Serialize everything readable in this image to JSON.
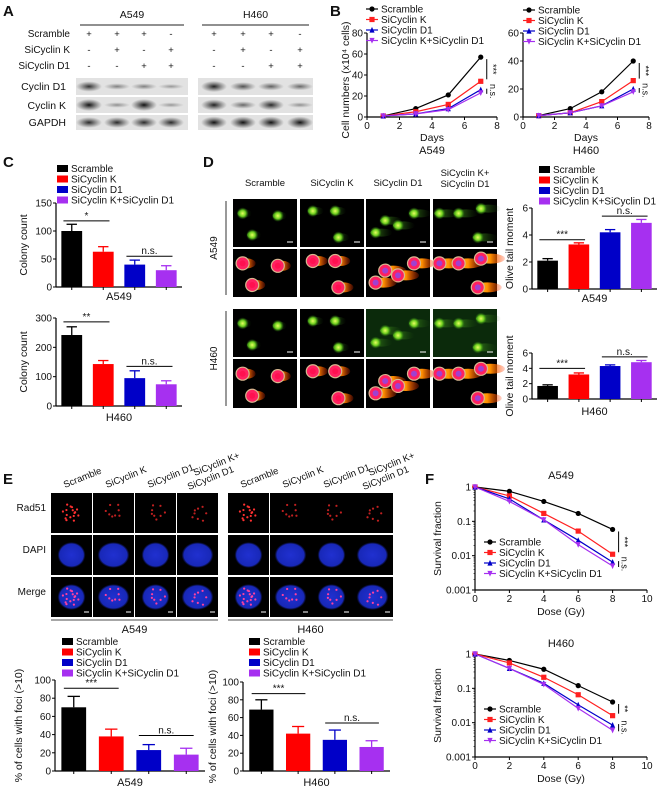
{
  "panel_letters": [
    "A",
    "B",
    "C",
    "D",
    "E",
    "F"
  ],
  "colors": {
    "scramble": "#000000",
    "sicyclin_k": "#ff0000",
    "sicyclin_d1": "#0000c8",
    "combo": "#a630f0"
  },
  "blot": {
    "groups": [
      "A549",
      "H460"
    ],
    "conditions": [
      {
        "label": "Scramble",
        "a549": [
          "+",
          "+",
          "+",
          "-"
        ],
        "h460": [
          "+",
          "+",
          "+",
          "-"
        ]
      },
      {
        "label": "SiCyclin K",
        "a549": [
          "-",
          "+",
          "-",
          "+"
        ],
        "h460": [
          "-",
          "+",
          "-",
          "+"
        ]
      },
      {
        "label": "SiCyclin D1",
        "a549": [
          "-",
          "-",
          "+",
          "+"
        ],
        "h460": [
          "-",
          "-",
          "+",
          "+"
        ]
      }
    ],
    "bands": [
      {
        "label": "Cyclin D1",
        "a549": [
          0.8,
          0.3,
          0.3,
          0.15
        ],
        "h460": [
          0.9,
          0.6,
          0.5,
          0.45
        ]
      },
      {
        "label": "Cyclin K",
        "a549": [
          1.0,
          0.2,
          1.0,
          0.15
        ],
        "h460": [
          0.9,
          0.45,
          0.85,
          0.2
        ]
      },
      {
        "label": "GAPDH",
        "a549": [
          0.85,
          0.85,
          0.85,
          0.85
        ],
        "h460": [
          1.0,
          1.0,
          1.0,
          1.0
        ]
      }
    ]
  },
  "comet": {
    "columns": [
      [
        "Scramble"
      ],
      [
        "SiCyclin K"
      ],
      [
        "SiCyclin D1"
      ],
      [
        "SiCyclin K+",
        "SiCyclin D1"
      ]
    ],
    "rows": [
      "A549",
      "H460"
    ]
  },
  "foci_images": {
    "columns": [
      "Scramble",
      "SiCyclin K",
      "SiCyclin D1",
      "SiCyclin K+",
      "SiCyclin D1"
    ],
    "channels": [
      "Rad51",
      "DAPI",
      "Merge"
    ],
    "groups": [
      "A549",
      "H460"
    ]
  },
  "chart_data": [
    {
      "panel": "B",
      "type": "line",
      "title": "A549",
      "xlabel": "Days",
      "ylabel": "Cell numbers (x10⁴ cells)",
      "xlim": [
        0,
        8
      ],
      "ylim": [
        0,
        80
      ],
      "xticks": [
        0,
        2,
        4,
        6,
        8
      ],
      "xticklabels": [
        "0",
        "2",
        "4",
        "6",
        "8"
      ],
      "yticks": [
        0,
        20,
        40,
        60,
        80
      ],
      "yticklabels": [
        "0",
        "20",
        "40",
        "60",
        "80"
      ],
      "x": [
        1,
        3,
        5,
        7
      ],
      "series": [
        {
          "name": "Scramble",
          "color": "#000000",
          "values": [
            1,
            8,
            21,
            57
          ]
        },
        {
          "name": "SiCyclin K",
          "color": "#ff2020",
          "values": [
            1,
            5,
            12,
            34
          ]
        },
        {
          "name": "SiCyclin D1",
          "color": "#0000c8",
          "values": [
            1,
            3,
            8,
            26
          ]
        },
        {
          "name": "SiCyclin K+SiCyclin D1",
          "color": "#a630f0",
          "values": [
            1,
            3,
            7,
            23
          ]
        }
      ],
      "annotations": [
        {
          "text": "***",
          "series": [
            0,
            1
          ]
        },
        {
          "text": "n.s.",
          "series": [
            2,
            3
          ]
        }
      ],
      "legend": "top-left"
    },
    {
      "panel": "B",
      "type": "line",
      "title": "H460",
      "xlabel": "Days",
      "ylabel": "",
      "xlim": [
        0,
        8
      ],
      "ylim": [
        0,
        60
      ],
      "xticks": [
        0,
        2,
        4,
        6,
        8
      ],
      "xticklabels": [
        "0",
        "2",
        "4",
        "6",
        "8"
      ],
      "yticks": [
        0,
        20,
        40,
        60
      ],
      "yticklabels": [
        "0",
        "20",
        "40",
        "60"
      ],
      "x": [
        1,
        3,
        5,
        7
      ],
      "series": [
        {
          "name": "Scramble",
          "color": "#000000",
          "values": [
            1,
            6,
            18,
            40
          ]
        },
        {
          "name": "SiCyclin K",
          "color": "#ff2020",
          "values": [
            1,
            3,
            11,
            26
          ]
        },
        {
          "name": "SiCyclin D1",
          "color": "#0000c8",
          "values": [
            1,
            3,
            8,
            20
          ]
        },
        {
          "name": "SiCyclin K+SiCyclin D1",
          "color": "#a630f0",
          "values": [
            1,
            3,
            8,
            18
          ]
        }
      ],
      "annotations": [
        {
          "text": "***",
          "series": [
            0,
            1
          ]
        },
        {
          "text": "n.s.",
          "series": [
            2,
            3
          ]
        }
      ],
      "legend": "top-left"
    },
    {
      "panel": "C",
      "type": "bar",
      "title": "A549",
      "ylabel": "Colony count",
      "ylim": [
        0,
        150
      ],
      "yticks": [
        0,
        50,
        100,
        150
      ],
      "yticklabels": [
        "0",
        "50",
        "100",
        "150"
      ],
      "categories": [
        "Scramble",
        "SiCyclin K",
        "SiCyclin D1",
        "SiCyclin K+SiCyclin D1"
      ],
      "colors": [
        "#000000",
        "#ff0000",
        "#0000c8",
        "#a630f0"
      ],
      "values": [
        100,
        63,
        40,
        30
      ],
      "errors": [
        12,
        9,
        8,
        8
      ],
      "annotations": [
        {
          "text": "*",
          "bars": [
            0,
            1
          ],
          "y": 118
        },
        {
          "text": "n.s.",
          "bars": [
            2,
            3
          ],
          "y": 55
        }
      ],
      "legend": "top"
    },
    {
      "panel": "C",
      "type": "bar",
      "title": "H460",
      "ylabel": "Colony count",
      "ylim": [
        0,
        300
      ],
      "yticks": [
        0,
        100,
        200,
        300
      ],
      "yticklabels": [
        "0",
        "100",
        "200",
        "300"
      ],
      "categories": [
        "Scramble",
        "SiCyclin K",
        "SiCyclin D1",
        "SiCyclin K+SiCyclin D1"
      ],
      "colors": [
        "#000000",
        "#ff0000",
        "#0000c8",
        "#a630f0"
      ],
      "values": [
        242,
        143,
        95,
        74
      ],
      "errors": [
        28,
        12,
        25,
        12
      ],
      "annotations": [
        {
          "text": "**",
          "bars": [
            0,
            1
          ],
          "y": 287
        },
        {
          "text": "n.s.",
          "bars": [
            2,
            3
          ],
          "y": 135
        }
      ],
      "legend": "none"
    },
    {
      "panel": "D",
      "type": "bar",
      "title": "A549",
      "ylabel": "Olive tail moment",
      "ylim": [
        0,
        6
      ],
      "yticks": [
        0,
        2,
        4,
        6
      ],
      "yticklabels": [
        "0",
        "2",
        "4",
        "6"
      ],
      "categories": [
        "Scramble",
        "SiCyclin K",
        "SiCyclin D1",
        "SiCyclin K+SiCyclin D1"
      ],
      "colors": [
        "#000000",
        "#ff0000",
        "#0000c8",
        "#a630f0"
      ],
      "values": [
        2.1,
        3.3,
        4.2,
        4.9
      ],
      "errors": [
        0.15,
        0.12,
        0.2,
        0.25
      ],
      "annotations": [
        {
          "text": "***",
          "bars": [
            0,
            1
          ],
          "y": 3.65
        },
        {
          "text": "n.s.",
          "bars": [
            2,
            3
          ],
          "y": 5.4
        }
      ],
      "legend": "top"
    },
    {
      "panel": "D",
      "type": "bar",
      "title": "H460",
      "ylabel": "Olive tail moment",
      "ylim": [
        0,
        6
      ],
      "yticks": [
        0,
        2,
        4,
        6
      ],
      "yticklabels": [
        "0",
        "2",
        "4",
        "6"
      ],
      "categories": [
        "Scramble",
        "SiCyclin K",
        "SiCyclin D1",
        "SiCyclin K+SiCyclin D1"
      ],
      "colors": [
        "#000000",
        "#ff0000",
        "#0000c8",
        "#a630f0"
      ],
      "values": [
        1.7,
        3.2,
        4.3,
        4.8
      ],
      "errors": [
        0.15,
        0.2,
        0.15,
        0.22
      ],
      "annotations": [
        {
          "text": "***",
          "bars": [
            0,
            1
          ],
          "y": 4.0
        },
        {
          "text": "n.s.",
          "bars": [
            2,
            3
          ],
          "y": 5.5
        }
      ],
      "legend": "none"
    },
    {
      "panel": "E",
      "type": "bar",
      "title": "A549",
      "ylabel": "% of cells with foci (>10)",
      "ylim": [
        0,
        100
      ],
      "yticks": [
        0,
        20,
        40,
        60,
        80,
        100
      ],
      "yticklabels": [
        "0",
        "20",
        "40",
        "60",
        "80",
        "100"
      ],
      "categories": [
        "Scramble",
        "SiCyclin K",
        "SiCyclin D1",
        "SiCyclin K+SiCyclin D1"
      ],
      "colors": [
        "#000000",
        "#ff0000",
        "#0000c8",
        "#a630f0"
      ],
      "values": [
        70,
        38,
        23,
        18
      ],
      "errors": [
        12,
        8,
        6,
        7
      ],
      "annotations": [
        {
          "text": "***",
          "bars": [
            0,
            1
          ],
          "y": 91
        },
        {
          "text": "n.s.",
          "bars": [
            2,
            3
          ],
          "y": 39
        }
      ],
      "legend": "top"
    },
    {
      "panel": "E",
      "type": "bar",
      "title": "H460",
      "ylabel": "% of cells with foci (>10)",
      "ylim": [
        0,
        100
      ],
      "yticks": [
        0,
        20,
        40,
        60,
        80,
        100
      ],
      "yticklabels": [
        "0",
        "20",
        "40",
        "60",
        "80",
        "100"
      ],
      "categories": [
        "Scramble",
        "SiCyclin K",
        "SiCyclin D1",
        "SiCyclin K+SiCyclin D1"
      ],
      "colors": [
        "#000000",
        "#ff0000",
        "#0000c8",
        "#a630f0"
      ],
      "values": [
        69,
        42,
        35,
        27
      ],
      "errors": [
        11,
        8,
        11,
        7
      ],
      "annotations": [
        {
          "text": "***",
          "bars": [
            0,
            1
          ],
          "y": 87
        },
        {
          "text": "n.s.",
          "bars": [
            2,
            3
          ],
          "y": 54
        }
      ],
      "legend": "top"
    },
    {
      "panel": "F",
      "type": "line",
      "yscale": "log",
      "title": "A549",
      "xlabel": "Dose (Gy)",
      "ylabel": "Survival fraction",
      "xlim": [
        0,
        10
      ],
      "ylim": [
        0.001,
        1
      ],
      "xticks": [
        0,
        2,
        4,
        6,
        8,
        10
      ],
      "xticklabels": [
        "0",
        "2",
        "4",
        "6",
        "8",
        "10"
      ],
      "yticks": [
        0.001,
        0.01,
        0.1,
        1
      ],
      "yticklabels": [
        "0.001",
        "0.01",
        "0.1",
        "1"
      ],
      "x": [
        0,
        2,
        4,
        6,
        8
      ],
      "series": [
        {
          "name": "Scramble",
          "color": "#000000",
          "values": [
            1,
            0.75,
            0.38,
            0.17,
            0.058
          ]
        },
        {
          "name": "SiCyclin K",
          "color": "#ff2020",
          "values": [
            1,
            0.55,
            0.17,
            0.052,
            0.011
          ]
        },
        {
          "name": "SiCyclin D1",
          "color": "#0000c8",
          "values": [
            1,
            0.45,
            0.11,
            0.028,
            0.0065
          ]
        },
        {
          "name": "SiCyclin K+SiCyclin D1",
          "color": "#a630f0",
          "values": [
            1,
            0.38,
            0.11,
            0.021,
            0.005
          ]
        }
      ],
      "annotations": [
        {
          "text": "***",
          "series": [
            0,
            1
          ]
        },
        {
          "text": "n.s.",
          "series": [
            2,
            3
          ]
        }
      ],
      "legend": "bottom-left"
    },
    {
      "panel": "F",
      "type": "line",
      "yscale": "log",
      "title": "H460",
      "xlabel": "Dose (Gy)",
      "ylabel": "Survival fraction",
      "xlim": [
        0,
        10
      ],
      "ylim": [
        0.001,
        1
      ],
      "xticks": [
        0,
        2,
        4,
        6,
        8,
        10
      ],
      "xticklabels": [
        "0",
        "2",
        "4",
        "6",
        "8",
        "10"
      ],
      "yticks": [
        0.001,
        0.01,
        0.1,
        1
      ],
      "yticklabels": [
        "0.001",
        "0.01",
        "0.1",
        "1"
      ],
      "x": [
        0,
        2,
        4,
        6,
        8
      ],
      "series": [
        {
          "name": "Scramble",
          "color": "#000000",
          "values": [
            1,
            0.65,
            0.36,
            0.12,
            0.04
          ]
        },
        {
          "name": "SiCyclin K",
          "color": "#ff2020",
          "values": [
            1,
            0.55,
            0.21,
            0.065,
            0.016
          ]
        },
        {
          "name": "SiCyclin D1",
          "color": "#0000c8",
          "values": [
            1,
            0.38,
            0.14,
            0.033,
            0.0085
          ]
        },
        {
          "name": "SiCyclin K+SiCyclin D1",
          "color": "#a630f0",
          "values": [
            1,
            0.38,
            0.13,
            0.026,
            0.006
          ]
        }
      ],
      "annotations": [
        {
          "text": "**",
          "series": [
            0,
            1
          ]
        },
        {
          "text": "n.s.",
          "series": [
            2,
            3
          ]
        }
      ],
      "legend": "bottom-left"
    }
  ]
}
